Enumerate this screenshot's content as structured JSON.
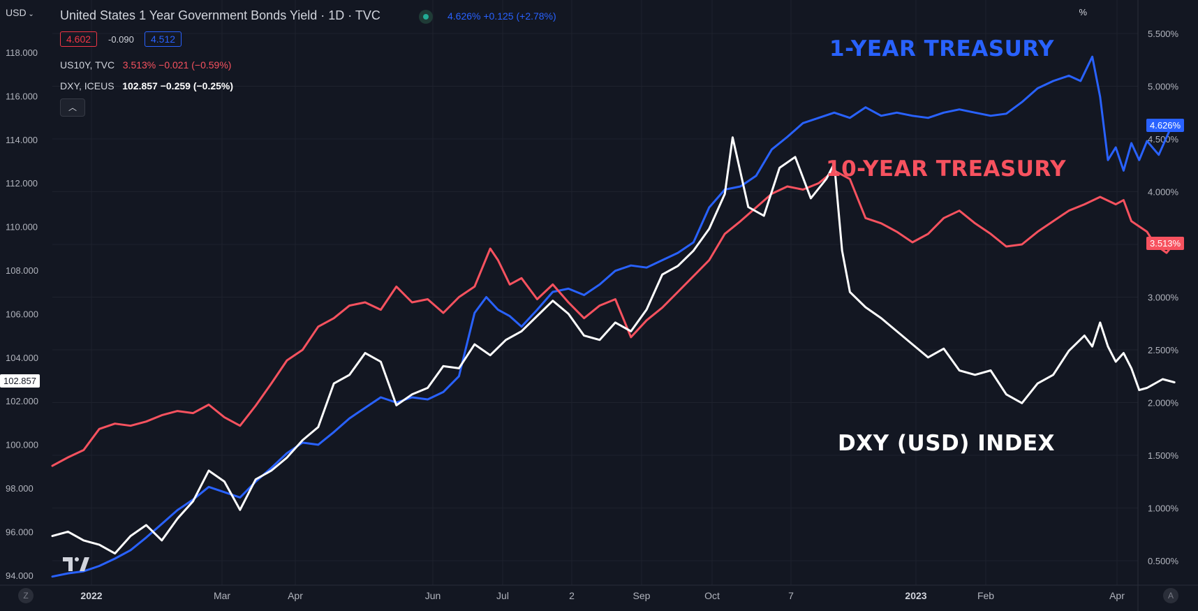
{
  "header": {
    "currency": "USD",
    "title": "United States 1 Year Government Bonds Yield · 1D · TVC",
    "price": "4.626%",
    "change": "+0.125 (+2.78%)",
    "bid": "4.602",
    "spread": "-0.090",
    "ask": "4.512"
  },
  "legend": {
    "us10y_name": "US10Y, TVC",
    "us10y_value": "3.513% −0.021 (−0.59%)",
    "dxy_name": "DXY, ICEUS",
    "dxy_value": "102.857 −0.259 (−0.25%)",
    "collapse_icon": "chevron-up-icon"
  },
  "axes": {
    "left_ticks": [
      "118.000",
      "116.000",
      "114.000",
      "112.000",
      "110.000",
      "108.000",
      "106.000",
      "104.000",
      "102.000",
      "100.000",
      "98.000",
      "96.000",
      "94.000"
    ],
    "left_tick_values": [
      118,
      116,
      114,
      112,
      110,
      108,
      106,
      104,
      102,
      100,
      98,
      96,
      94
    ],
    "right_unit": "%",
    "right_ticks": [
      "5.500%",
      "5.000%",
      "4.500%",
      "4.000%",
      "3.500%",
      "3.000%",
      "2.500%",
      "2.000%",
      "1.500%",
      "1.000%",
      "0.500%"
    ],
    "right_tick_values": [
      5.5,
      5.0,
      4.5,
      4.0,
      3.5,
      3.0,
      2.5,
      2.0,
      1.5,
      1.0,
      0.5
    ],
    "x_ticks": [
      "2022",
      "Mar",
      "Apr",
      "Jun",
      "Jul",
      "2",
      "Sep",
      "Oct",
      "7",
      "2023",
      "Feb",
      "Apr"
    ],
    "bold_x_ticks": [
      "2022",
      "2023"
    ]
  },
  "price_tags": {
    "dxy": "102.857",
    "us1y": "4.626%",
    "us10y": "3.513%"
  },
  "annotations": {
    "us1y": "1-YEAR TREASURY",
    "us10y": "10-YEAR TREASURY",
    "dxy": "DXY (USD) INDEX"
  },
  "footer": {
    "left_button": "Z",
    "right_button": "A"
  },
  "colors": {
    "background": "#131722",
    "grid": "#1e222d",
    "us1y": "#2962ff",
    "us10y": "#f7525f",
    "dxy": "#ffffff",
    "up": "#22ab94"
  },
  "chart_data": {
    "type": "line",
    "series": [
      {
        "name": "US1Y",
        "axis": "right",
        "points": [
          [
            0,
            0.35
          ],
          [
            4,
            0.38
          ],
          [
            8,
            0.4
          ],
          [
            12,
            0.45
          ],
          [
            16,
            0.52
          ],
          [
            20,
            0.6
          ],
          [
            24,
            0.72
          ],
          [
            28,
            0.85
          ],
          [
            32,
            0.98
          ],
          [
            36,
            1.08
          ],
          [
            40,
            1.2
          ],
          [
            44,
            1.15
          ],
          [
            48,
            1.1
          ],
          [
            52,
            1.25
          ],
          [
            56,
            1.38
          ],
          [
            60,
            1.52
          ],
          [
            64,
            1.62
          ],
          [
            68,
            1.6
          ],
          [
            72,
            1.72
          ],
          [
            76,
            1.85
          ],
          [
            80,
            1.95
          ],
          [
            84,
            2.05
          ],
          [
            88,
            2.0
          ],
          [
            92,
            2.05
          ],
          [
            96,
            2.03
          ],
          [
            100,
            2.1
          ],
          [
            104,
            2.25
          ],
          [
            108,
            2.85
          ],
          [
            111,
            3.0
          ],
          [
            114,
            2.88
          ],
          [
            117,
            2.82
          ],
          [
            120,
            2.72
          ],
          [
            124,
            2.88
          ],
          [
            128,
            3.05
          ],
          [
            132,
            3.08
          ],
          [
            136,
            3.02
          ],
          [
            140,
            3.12
          ],
          [
            144,
            3.25
          ],
          [
            148,
            3.3
          ],
          [
            152,
            3.28
          ],
          [
            156,
            3.35
          ],
          [
            160,
            3.42
          ],
          [
            164,
            3.52
          ],
          [
            168,
            3.85
          ],
          [
            172,
            4.02
          ],
          [
            176,
            4.05
          ],
          [
            180,
            4.15
          ],
          [
            184,
            4.4
          ],
          [
            188,
            4.52
          ],
          [
            192,
            4.65
          ],
          [
            196,
            4.7
          ],
          [
            200,
            4.75
          ],
          [
            204,
            4.7
          ],
          [
            208,
            4.8
          ],
          [
            212,
            4.72
          ],
          [
            216,
            4.75
          ],
          [
            220,
            4.72
          ],
          [
            224,
            4.7
          ],
          [
            228,
            4.75
          ],
          [
            232,
            4.78
          ],
          [
            236,
            4.75
          ],
          [
            240,
            4.72
          ],
          [
            244,
            4.74
          ],
          [
            248,
            4.85
          ],
          [
            252,
            4.98
          ],
          [
            256,
            5.05
          ],
          [
            260,
            5.1
          ],
          [
            263,
            5.05
          ],
          [
            266,
            5.28
          ],
          [
            268,
            4.9
          ],
          [
            270,
            4.3
          ],
          [
            272,
            4.42
          ],
          [
            274,
            4.2
          ],
          [
            276,
            4.46
          ],
          [
            278,
            4.3
          ],
          [
            280,
            4.48
          ],
          [
            283,
            4.35
          ],
          [
            286,
            4.6
          ],
          [
            287,
            4.626
          ]
        ]
      },
      {
        "name": "US10Y",
        "axis": "right",
        "points": [
          [
            0,
            1.4
          ],
          [
            4,
            1.48
          ],
          [
            8,
            1.55
          ],
          [
            12,
            1.75
          ],
          [
            16,
            1.8
          ],
          [
            20,
            1.78
          ],
          [
            24,
            1.82
          ],
          [
            28,
            1.88
          ],
          [
            32,
            1.92
          ],
          [
            36,
            1.9
          ],
          [
            40,
            1.98
          ],
          [
            44,
            1.86
          ],
          [
            48,
            1.78
          ],
          [
            52,
            1.97
          ],
          [
            56,
            2.18
          ],
          [
            60,
            2.4
          ],
          [
            64,
            2.5
          ],
          [
            68,
            2.72
          ],
          [
            72,
            2.8
          ],
          [
            76,
            2.92
          ],
          [
            80,
            2.95
          ],
          [
            84,
            2.88
          ],
          [
            88,
            3.1
          ],
          [
            92,
            2.95
          ],
          [
            96,
            2.98
          ],
          [
            100,
            2.85
          ],
          [
            104,
            3.0
          ],
          [
            108,
            3.1
          ],
          [
            112,
            3.46
          ],
          [
            114,
            3.35
          ],
          [
            117,
            3.12
          ],
          [
            120,
            3.18
          ],
          [
            124,
            2.98
          ],
          [
            128,
            3.12
          ],
          [
            132,
            2.95
          ],
          [
            136,
            2.8
          ],
          [
            140,
            2.92
          ],
          [
            144,
            2.98
          ],
          [
            148,
            2.62
          ],
          [
            152,
            2.78
          ],
          [
            156,
            2.9
          ],
          [
            160,
            3.05
          ],
          [
            164,
            3.2
          ],
          [
            168,
            3.35
          ],
          [
            172,
            3.6
          ],
          [
            176,
            3.72
          ],
          [
            180,
            3.85
          ],
          [
            184,
            3.98
          ],
          [
            188,
            4.05
          ],
          [
            192,
            4.02
          ],
          [
            196,
            4.08
          ],
          [
            200,
            4.2
          ],
          [
            204,
            4.12
          ],
          [
            208,
            3.75
          ],
          [
            212,
            3.7
          ],
          [
            216,
            3.62
          ],
          [
            220,
            3.52
          ],
          [
            224,
            3.6
          ],
          [
            228,
            3.75
          ],
          [
            232,
            3.82
          ],
          [
            236,
            3.7
          ],
          [
            240,
            3.6
          ],
          [
            244,
            3.48
          ],
          [
            248,
            3.5
          ],
          [
            252,
            3.62
          ],
          [
            256,
            3.72
          ],
          [
            260,
            3.82
          ],
          [
            264,
            3.88
          ],
          [
            268,
            3.95
          ],
          [
            272,
            3.88
          ],
          [
            274,
            3.92
          ],
          [
            276,
            3.72
          ],
          [
            280,
            3.62
          ],
          [
            282,
            3.5
          ],
          [
            285,
            3.42
          ],
          [
            287,
            3.513
          ]
        ]
      },
      {
        "name": "DXY",
        "axis": "left",
        "points": [
          [
            0,
            95.8
          ],
          [
            4,
            96.0
          ],
          [
            8,
            95.6
          ],
          [
            12,
            95.4
          ],
          [
            16,
            95.0
          ],
          [
            20,
            95.8
          ],
          [
            24,
            96.3
          ],
          [
            28,
            95.6
          ],
          [
            32,
            96.6
          ],
          [
            36,
            97.4
          ],
          [
            40,
            98.8
          ],
          [
            44,
            98.3
          ],
          [
            48,
            97.0
          ],
          [
            52,
            98.4
          ],
          [
            56,
            98.8
          ],
          [
            60,
            99.4
          ],
          [
            64,
            100.2
          ],
          [
            68,
            100.8
          ],
          [
            72,
            102.8
          ],
          [
            76,
            103.2
          ],
          [
            80,
            104.2
          ],
          [
            84,
            103.8
          ],
          [
            88,
            101.8
          ],
          [
            92,
            102.3
          ],
          [
            96,
            102.6
          ],
          [
            100,
            103.6
          ],
          [
            104,
            103.5
          ],
          [
            108,
            104.6
          ],
          [
            112,
            104.1
          ],
          [
            116,
            104.8
          ],
          [
            120,
            105.2
          ],
          [
            124,
            105.9
          ],
          [
            128,
            106.6
          ],
          [
            132,
            106.0
          ],
          [
            136,
            105.0
          ],
          [
            140,
            104.8
          ],
          [
            144,
            105.6
          ],
          [
            148,
            105.2
          ],
          [
            152,
            106.2
          ],
          [
            156,
            107.8
          ],
          [
            160,
            108.2
          ],
          [
            164,
            108.9
          ],
          [
            168,
            109.9
          ],
          [
            172,
            111.5
          ],
          [
            174,
            114.1
          ],
          [
            178,
            110.9
          ],
          [
            182,
            110.5
          ],
          [
            186,
            112.7
          ],
          [
            190,
            113.2
          ],
          [
            194,
            111.3
          ],
          [
            198,
            112.2
          ],
          [
            200,
            112.9
          ],
          [
            202,
            108.9
          ],
          [
            204,
            107.0
          ],
          [
            208,
            106.3
          ],
          [
            212,
            105.8
          ],
          [
            216,
            105.2
          ],
          [
            220,
            104.6
          ],
          [
            224,
            104.0
          ],
          [
            228,
            104.4
          ],
          [
            232,
            103.4
          ],
          [
            236,
            103.2
          ],
          [
            240,
            103.4
          ],
          [
            244,
            102.3
          ],
          [
            248,
            101.9
          ],
          [
            252,
            102.8
          ],
          [
            256,
            103.2
          ],
          [
            260,
            104.3
          ],
          [
            264,
            105.0
          ],
          [
            266,
            104.5
          ],
          [
            268,
            105.6
          ],
          [
            270,
            104.5
          ],
          [
            272,
            103.8
          ],
          [
            274,
            104.2
          ],
          [
            276,
            103.5
          ],
          [
            278,
            102.5
          ],
          [
            280,
            102.6
          ],
          [
            284,
            103.0
          ],
          [
            287,
            102.857
          ]
        ]
      }
    ]
  }
}
